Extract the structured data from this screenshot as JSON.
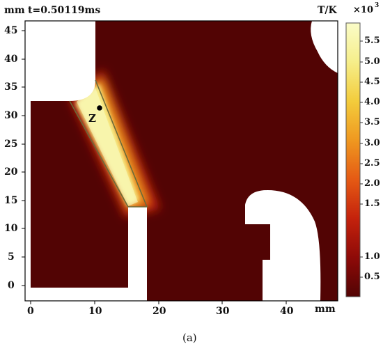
{
  "header": {
    "y_unit": "mm",
    "time_label": "t=0.50119ms"
  },
  "axes": {
    "x_unit": "mm",
    "x_ticks": [
      "0",
      "10",
      "20",
      "30",
      "40"
    ],
    "y_ticks": [
      "0",
      "5",
      "10",
      "15",
      "20",
      "25",
      "30",
      "35",
      "40",
      "45"
    ]
  },
  "annotation": {
    "point_label": "Z"
  },
  "colorbar": {
    "title": "T/K",
    "multiplier": "×10",
    "multiplier_exp": "3",
    "ticks": [
      "5.5",
      "5.0",
      "4.5",
      "4.0",
      "3.5",
      "3.0",
      "2.5",
      "2.0",
      "1.5",
      "1.0",
      "0.5"
    ],
    "colors": [
      "#fafcc8",
      "#f6ee8a",
      "#f3cc3c",
      "#ef9820",
      "#e55a14",
      "#c4220c",
      "#8e0a08",
      "#520404"
    ]
  },
  "caption": "(a)"
}
